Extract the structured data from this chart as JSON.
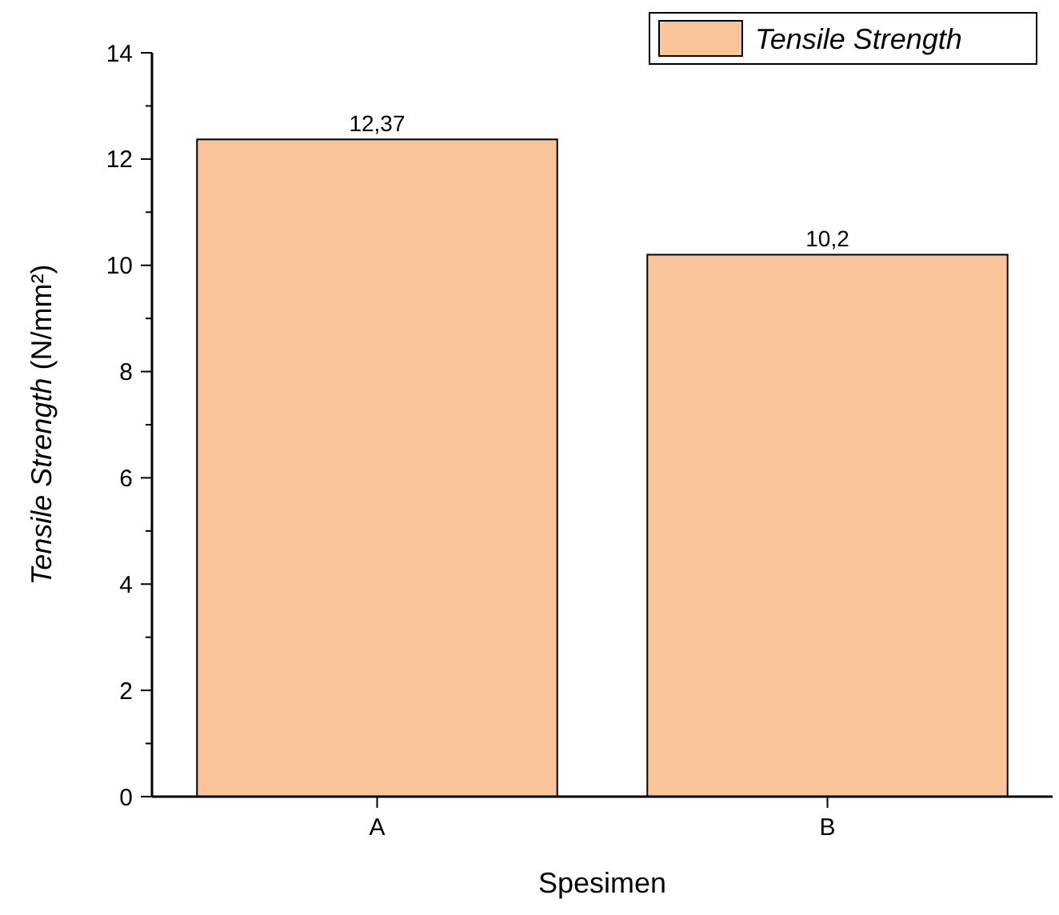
{
  "chart_data": {
    "type": "bar",
    "xlabel": "Spesimen",
    "ylabel": "Tensile Strength (N/mm²)",
    "categories": [
      "A",
      "B"
    ],
    "series": [
      {
        "name": "Tensile Strength",
        "color": "#f9c499",
        "values": [
          12.37,
          10.2
        ],
        "value_labels": [
          "12,37",
          "10,2"
        ]
      }
    ],
    "ylim": [
      0,
      14
    ],
    "yticks": [
      0,
      {
        "value": 1,
        "label": null
      },
      2,
      {
        "value": 3,
        "label": null
      },
      4,
      {
        "value": 5,
        "label": null
      },
      6,
      {
        "value": 7,
        "label": null
      },
      8,
      {
        "value": 9,
        "label": null
      },
      10,
      {
        "value": 11,
        "label": null
      },
      12,
      {
        "value": 13,
        "label": null
      },
      14
    ],
    "grid": false,
    "legend": "top right"
  }
}
